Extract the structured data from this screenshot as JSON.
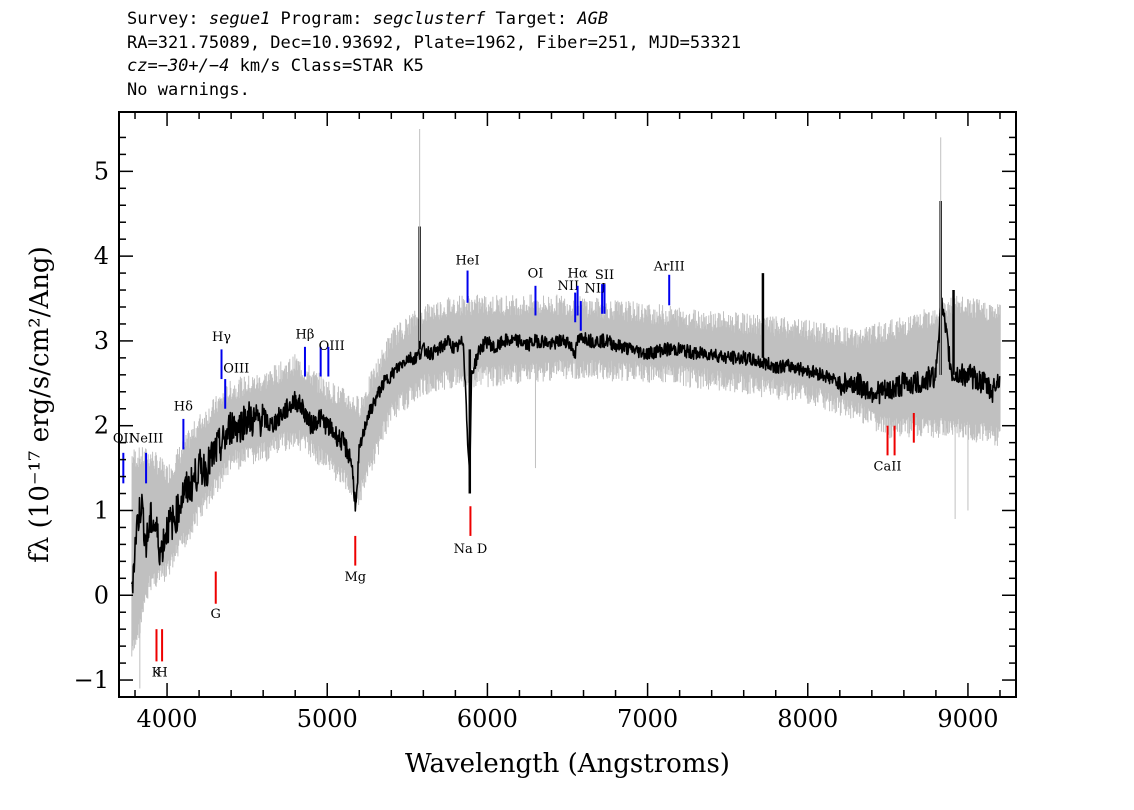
{
  "header": {
    "line1": {
      "survey_label": "Survey: ",
      "survey": "segue1",
      "program_label": " Program: ",
      "program": "segclusterf",
      "target_label": " Target: ",
      "target": "AGB"
    },
    "line2": "RA=321.75089, Dec=10.93692, Plate=1962, Fiber=251, MJD=53321",
    "line3": {
      "cz": "cz=−30+/−4",
      "rest": " km/s Class=STAR K5"
    },
    "line4": "No warnings."
  },
  "chart_data": {
    "type": "line",
    "title": "",
    "xlabel": "Wavelength (Angstroms)",
    "ylabel": "fλ (10⁻¹⁷ erg/s/cm²/Ang)",
    "xlim": [
      3700,
      9300
    ],
    "ylim": [
      -1.2,
      5.7
    ],
    "x_ticks": [
      4000,
      5000,
      6000,
      7000,
      8000,
      9000
    ],
    "y_ticks": [
      -1,
      0,
      1,
      2,
      3,
      4,
      5
    ],
    "x_tick_labels": [
      "4000",
      "5000",
      "6000",
      "7000",
      "8000",
      "9000"
    ],
    "y_tick_labels": [
      "−1",
      "0",
      "1",
      "2",
      "3",
      "4",
      "5"
    ],
    "grid": false,
    "colors": {
      "flux": "#000000",
      "error_band": "#c0c0c0",
      "emission": "#0000ee",
      "absorption": "#ee0000"
    },
    "series": [
      {
        "role": "flux",
        "x": [
          3780,
          3810,
          3840,
          3870,
          3900,
          3930,
          3960,
          4000,
          4050,
          4100,
          4150,
          4200,
          4250,
          4300,
          4350,
          4400,
          4450,
          4500,
          4550,
          4600,
          4650,
          4700,
          4750,
          4800,
          4850,
          4900,
          4950,
          5000,
          5050,
          5100,
          5150,
          5180,
          5200,
          5250,
          5300,
          5350,
          5400,
          5450,
          5500,
          5550,
          5600,
          5650,
          5700,
          5750,
          5800,
          5850,
          5890,
          5900,
          5950,
          6000,
          6050,
          6100,
          6150,
          6200,
          6250,
          6300,
          6350,
          6400,
          6450,
          6500,
          6550,
          6563,
          6600,
          6650,
          6700,
          6750,
          6800,
          6900,
          7000,
          7100,
          7200,
          7300,
          7400,
          7500,
          7600,
          7700,
          7800,
          7900,
          8000,
          8100,
          8200,
          8300,
          8400,
          8500,
          8600,
          8700,
          8800,
          8830,
          8900,
          9000,
          9100,
          9150,
          9200
        ],
        "y": [
          0.1,
          0.8,
          1.1,
          0.6,
          0.9,
          0.8,
          0.5,
          0.8,
          0.9,
          1.2,
          1.3,
          1.5,
          1.5,
          1.7,
          1.8,
          2.0,
          2.0,
          2.1,
          2.05,
          2.1,
          2.0,
          2.1,
          2.2,
          2.3,
          2.2,
          2.0,
          2.1,
          2.0,
          1.9,
          1.8,
          1.6,
          1.0,
          1.7,
          2.1,
          2.3,
          2.5,
          2.6,
          2.7,
          2.8,
          2.8,
          2.9,
          2.85,
          2.9,
          3.0,
          2.9,
          3.0,
          1.3,
          2.6,
          2.9,
          3.0,
          2.9,
          3.0,
          3.0,
          3.0,
          2.95,
          3.0,
          3.0,
          2.95,
          3.0,
          3.0,
          2.85,
          3.0,
          3.05,
          3.0,
          3.0,
          3.0,
          2.95,
          2.9,
          2.85,
          2.9,
          2.9,
          2.85,
          2.85,
          2.8,
          2.8,
          2.75,
          2.7,
          2.7,
          2.65,
          2.6,
          2.5,
          2.5,
          2.4,
          2.4,
          2.5,
          2.5,
          2.6,
          3.5,
          2.6,
          2.6,
          2.5,
          2.4,
          2.6
        ]
      },
      {
        "role": "error_band",
        "x": [
          3780,
          3900,
          4000,
          4200,
          4400,
          4600,
          4800,
          5000,
          5200,
          5400,
          5600,
          5800,
          6000,
          6500,
          7000,
          7500,
          8000,
          8300,
          8500,
          8700,
          8900,
          9200
        ],
        "lower": [
          -0.6,
          0.3,
          0.4,
          1.1,
          1.7,
          1.8,
          2.0,
          1.7,
          1.3,
          2.3,
          2.6,
          2.7,
          2.7,
          2.8,
          2.75,
          2.65,
          2.5,
          2.3,
          2.1,
          2.1,
          2.1,
          2.0
        ],
        "upper": [
          1.5,
          1.5,
          1.3,
          1.9,
          2.3,
          2.4,
          2.6,
          2.3,
          2.1,
          2.9,
          3.2,
          3.3,
          3.3,
          3.3,
          3.2,
          3.1,
          3.0,
          2.9,
          3.0,
          3.1,
          3.3,
          3.2
        ]
      }
    ],
    "spikes": [
      {
        "x": 5577,
        "y_from": 2.9,
        "y_to": 4.35,
        "color": "#000000"
      },
      {
        "x": 5890,
        "y_from": 2.9,
        "y_to": 1.2,
        "color": "#000000"
      },
      {
        "x": 7720,
        "y_from": 2.8,
        "y_to": 3.8,
        "color": "#000000"
      },
      {
        "x": 8830,
        "y_from": 2.6,
        "y_to": 4.65,
        "color": "#000000"
      },
      {
        "x": 8910,
        "y_from": 2.6,
        "y_to": 3.6,
        "color": "#000000"
      },
      {
        "x": 5577,
        "y_from": 3.0,
        "y_to": 5.5,
        "color": "#c0c0c0"
      },
      {
        "x": 6300,
        "y_from": 2.9,
        "y_to": 1.5,
        "color": "#c0c0c0"
      },
      {
        "x": 8830,
        "y_from": 2.6,
        "y_to": 5.4,
        "color": "#c0c0c0"
      },
      {
        "x": 8920,
        "y_from": 2.5,
        "y_to": 0.9,
        "color": "#c0c0c0"
      },
      {
        "x": 9000,
        "y_from": 2.5,
        "y_to": 1.0,
        "color": "#c0c0c0"
      },
      {
        "x": 3830,
        "y_from": 0.5,
        "y_to": -1.1,
        "color": "#c0c0c0"
      }
    ],
    "emission_lines": [
      {
        "label": "OII",
        "x": 3727,
        "y0": 1.32,
        "y1": 1.68,
        "label_y": 1.8,
        "anchor": "middle"
      },
      {
        "label": "NeIII",
        "x": 3869,
        "y0": 1.32,
        "y1": 1.68,
        "label_y": 1.8,
        "anchor": "middle"
      },
      {
        "label": "Hδ",
        "x": 4102,
        "y0": 1.72,
        "y1": 2.08,
        "label_y": 2.18,
        "anchor": "middle"
      },
      {
        "label": "Hγ",
        "x": 4340,
        "y0": 2.55,
        "y1": 2.9,
        "label_y": 3.0,
        "anchor": "middle"
      },
      {
        "label": "OIII",
        "x": 4363,
        "y0": 2.2,
        "y1": 2.55,
        "label_y": 2.63,
        "anchor": "start"
      },
      {
        "label": "Hβ",
        "x": 4861,
        "y0": 2.58,
        "y1": 2.93,
        "label_y": 3.03,
        "anchor": "middle"
      },
      {
        "label": "OIII",
        "x": 4959,
        "y0": 2.58,
        "y1": 2.93,
        "label_y": 2.89,
        "anchor": "start"
      },
      {
        "label": "",
        "x": 5007,
        "y0": 2.58,
        "y1": 2.93,
        "label_y": 0,
        "anchor": "middle"
      },
      {
        "label": "HeI",
        "x": 5876,
        "y0": 3.45,
        "y1": 3.83,
        "label_y": 3.9,
        "anchor": "middle"
      },
      {
        "label": "OI",
        "x": 6300,
        "y0": 3.3,
        "y1": 3.65,
        "label_y": 3.75,
        "anchor": "middle"
      },
      {
        "label": "NII",
        "x": 6548,
        "y0": 3.22,
        "y1": 3.57,
        "label_y": 3.6,
        "anchor": "end"
      },
      {
        "label": "Hα",
        "x": 6563,
        "y0": 3.3,
        "y1": 3.65,
        "label_y": 3.75,
        "anchor": "middle"
      },
      {
        "label": "",
        "x": 6583,
        "y0": 3.12,
        "y1": 3.47,
        "label_y": 0,
        "anchor": "middle"
      },
      {
        "label": "NII",
        "x": 6716,
        "y0": 3.32,
        "y1": 3.67,
        "label_y": 3.57,
        "anchor": "end"
      },
      {
        "label": "SII",
        "x": 6731,
        "y0": 3.32,
        "y1": 3.67,
        "label_y": 3.73,
        "anchor": "middle"
      },
      {
        "label": "ArIII",
        "x": 7135,
        "y0": 3.42,
        "y1": 3.78,
        "label_y": 3.83,
        "anchor": "middle"
      }
    ],
    "absorption_lines": [
      {
        "label": "K",
        "x": 3934,
        "y0": -0.78,
        "y1": -0.4,
        "label_y": -0.96,
        "anchor": "middle"
      },
      {
        "label": "H",
        "x": 3969,
        "y0": -0.78,
        "y1": -0.4,
        "label_y": -0.96,
        "anchor": "middle"
      },
      {
        "label": "G",
        "x": 4304,
        "y0": -0.1,
        "y1": 0.28,
        "label_y": -0.27,
        "anchor": "middle"
      },
      {
        "label": "Mg",
        "x": 5175,
        "y0": 0.35,
        "y1": 0.7,
        "label_y": 0.17,
        "anchor": "middle"
      },
      {
        "label": "Na D",
        "x": 5894,
        "y0": 0.7,
        "y1": 1.05,
        "label_y": 0.5,
        "anchor": "middle"
      },
      {
        "label": "CaII",
        "x": 8498,
        "y0": 1.65,
        "y1": 2.0,
        "label_y": 1.47,
        "anchor": "middle"
      },
      {
        "label": "",
        "x": 8542,
        "y0": 1.65,
        "y1": 2.0,
        "label_y": 0,
        "anchor": "middle"
      },
      {
        "label": "",
        "x": 8662,
        "y0": 1.8,
        "y1": 2.15,
        "label_y": 0,
        "anchor": "middle"
      }
    ]
  }
}
